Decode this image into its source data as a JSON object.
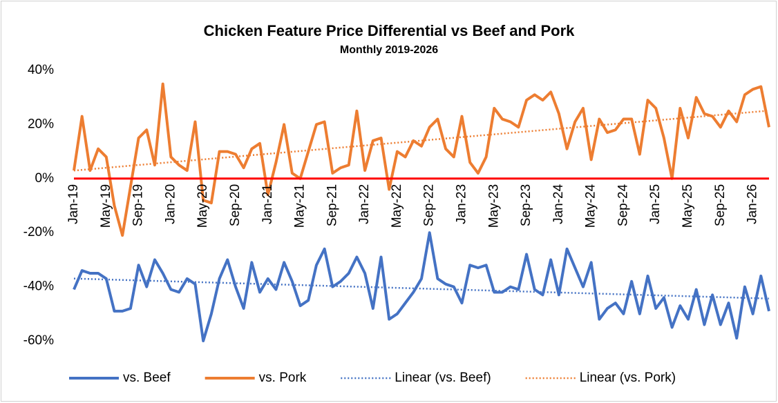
{
  "chart_data": {
    "type": "line",
    "title": "Chicken Feature Price Differential vs Beef and Pork",
    "subtitle": "Monthly 2019-2026",
    "categories": [
      "Jan-19",
      null,
      null,
      null,
      "May-19",
      null,
      null,
      null,
      "Sep-19",
      null,
      null,
      null,
      "Jan-20",
      null,
      null,
      null,
      "May-20",
      null,
      null,
      null,
      "Sep-20",
      null,
      null,
      null,
      "Jan-21",
      null,
      null,
      null,
      "May-21",
      null,
      null,
      null,
      "Sep-21",
      null,
      null,
      null,
      "Jan-22",
      null,
      null,
      null,
      "May-22",
      null,
      null,
      null,
      "Sep-22",
      null,
      null,
      null,
      "Jan-23",
      null,
      null,
      null,
      "May-23",
      null,
      null,
      null,
      "Sep-23",
      null,
      null,
      null,
      "Jan-24",
      null,
      null,
      null,
      "May-24",
      null,
      null,
      null,
      "Sep-24",
      null,
      null,
      null,
      "Jan-25",
      null,
      null,
      null,
      "May-25",
      null,
      null,
      null,
      "Sep-25",
      null,
      null,
      null,
      "Jan-26",
      null,
      null
    ],
    "series": [
      {
        "name": "vs. Beef",
        "color": "#4472c4",
        "values": [
          -41,
          -34,
          -35,
          -35,
          -37,
          -49,
          -49,
          -48,
          -32,
          -40,
          -30,
          -35,
          -41,
          -42,
          -37,
          -39,
          -60,
          -50,
          -37,
          -30,
          -40,
          -48,
          -31,
          -42,
          -37,
          -41,
          -31,
          -38,
          -47,
          -45,
          -32,
          -26,
          -40,
          -38,
          -35,
          -29,
          -35,
          -48,
          -29,
          -52,
          -50,
          -46,
          -42,
          -37,
          -20,
          -37,
          -39,
          -40,
          -46,
          -32,
          -33,
          -32,
          -42,
          -42,
          -40,
          -41,
          -28,
          -41,
          -43,
          -30,
          -43,
          -26,
          -33,
          -40,
          -31,
          -52,
          -48,
          -46,
          -50,
          -38,
          -50,
          -36,
          -48,
          -44,
          -55,
          -47,
          -52,
          -41,
          -54,
          -43,
          -54,
          -46,
          -59,
          -40,
          -50,
          -36,
          -49
        ]
      },
      {
        "name": "vs. Pork",
        "color": "#ed7d31",
        "values": [
          3,
          23,
          3,
          11,
          8,
          -10,
          -21,
          -3,
          15,
          18,
          5,
          35,
          8,
          5,
          3,
          21,
          -8,
          -9,
          10,
          10,
          9,
          4,
          11,
          13,
          -6,
          6,
          20,
          2,
          0,
          10,
          20,
          21,
          2,
          4,
          5,
          25,
          3,
          14,
          15,
          -4,
          10,
          8,
          14,
          12,
          19,
          22,
          11,
          8,
          23,
          6,
          2,
          8,
          26,
          22,
          21,
          19,
          29,
          31,
          29,
          32,
          24,
          11,
          21,
          26,
          7,
          22,
          17,
          18,
          22,
          22,
          9,
          29,
          26,
          15,
          0,
          26,
          15,
          30,
          24,
          23,
          19,
          25,
          21,
          31,
          33,
          34,
          19
        ]
      }
    ],
    "trendlines": [
      {
        "name": "Linear (vs. Beef)",
        "series": 0,
        "color": "#4472c4"
      },
      {
        "name": "Linear (vs. Pork)",
        "series": 1,
        "color": "#ed7d31"
      }
    ],
    "ylim": [
      -60,
      40
    ],
    "yticks": [
      {
        "value": -60,
        "label": "-60%"
      },
      {
        "value": -40,
        "label": "-40%"
      },
      {
        "value": -20,
        "label": "-20%"
      },
      {
        "value": 0,
        "label": "0%"
      },
      {
        "value": 20,
        "label": "20%"
      },
      {
        "value": 40,
        "label": "40%"
      }
    ],
    "zero_line_color": "#ff0000",
    "legend": "bottom"
  }
}
